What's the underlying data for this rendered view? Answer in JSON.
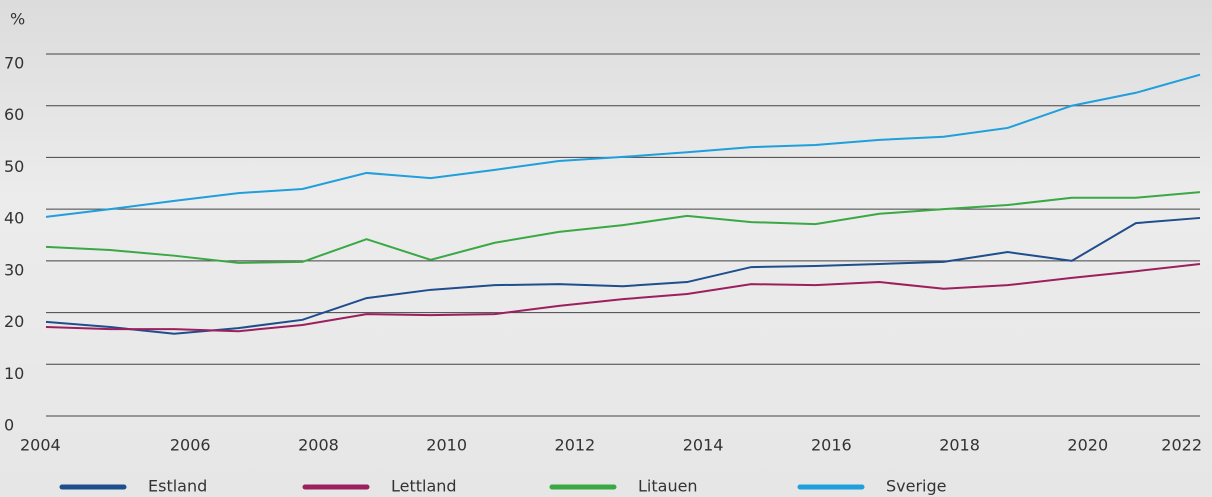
{
  "chart_data": {
    "type": "line",
    "y_label": "%",
    "x": [
      2004,
      2005,
      2006,
      2007,
      2008,
      2009,
      2010,
      2011,
      2012,
      2013,
      2014,
      2015,
      2016,
      2017,
      2018,
      2019,
      2020,
      2021,
      2022
    ],
    "xlim": [
      2004,
      2022
    ],
    "xticks": [
      2004,
      2006,
      2008,
      2010,
      2012,
      2014,
      2016,
      2018,
      2020,
      2022
    ],
    "ylim": [
      0,
      70
    ],
    "yticks": [
      0,
      10,
      20,
      30,
      40,
      50,
      60,
      70
    ],
    "grid": true,
    "series": [
      {
        "name": "Estland",
        "color": "#1f4e8c",
        "values": [
          18.2,
          17.2,
          15.9,
          17,
          18.6,
          22.8,
          24.4,
          25.3,
          25.5,
          25.1,
          25.9,
          28.8,
          29,
          29.4,
          29.8,
          31.7,
          30,
          37.3,
          38.3
        ]
      },
      {
        "name": "Lettland",
        "color": "#9c1f5e",
        "values": [
          17.2,
          16.8,
          16.8,
          16.4,
          17.6,
          19.7,
          19.5,
          19.7,
          21.3,
          22.6,
          23.6,
          25.5,
          25.3,
          25.9,
          24.6,
          25.3,
          26.7,
          28,
          29.4
        ]
      },
      {
        "name": "Litauen",
        "color": "#3aa844",
        "values": [
          32.7,
          32.1,
          31,
          29.6,
          29.8,
          34.2,
          30.2,
          33.5,
          35.6,
          36.9,
          38.7,
          37.5,
          37.1,
          39.1,
          40,
          40.8,
          42.2,
          42.2,
          43.3
        ]
      },
      {
        "name": "Sverige",
        "color": "#1f9fdc",
        "values": [
          38.5,
          40,
          41.6,
          43.1,
          43.9,
          47,
          46,
          47.6,
          49.3,
          50.1,
          51,
          52,
          52.4,
          53.4,
          54,
          55.7,
          60,
          62.5,
          66
        ]
      }
    ]
  }
}
